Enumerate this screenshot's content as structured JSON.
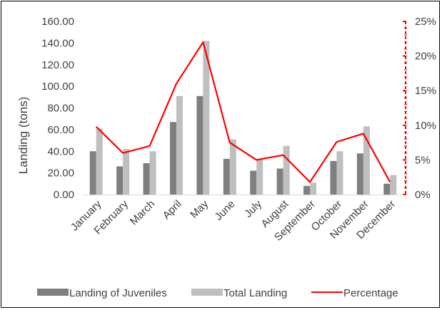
{
  "chart_data": {
    "type": "bar",
    "categories": [
      "January",
      "February",
      "March",
      "April",
      "May",
      "June",
      "July",
      "August",
      "September",
      "October",
      "November",
      "December"
    ],
    "series": [
      {
        "name": "Landing of Juveniles",
        "type": "bar",
        "axis": "left",
        "color": "#7f7f7f",
        "values": [
          40,
          26,
          29,
          67,
          91,
          33,
          22,
          24,
          8,
          31,
          38,
          10
        ]
      },
      {
        "name": "Total Landing",
        "type": "bar",
        "axis": "left",
        "color": "#bfbfbf",
        "values": [
          61,
          42,
          40,
          91,
          142,
          51,
          33,
          45,
          11,
          40,
          63,
          18
        ]
      },
      {
        "name": "Percentage",
        "type": "line",
        "axis": "right",
        "color": "#ff0000",
        "values": [
          0.098,
          0.06,
          0.07,
          0.16,
          0.22,
          0.075,
          0.05,
          0.057,
          0.018,
          0.076,
          0.088,
          0.018
        ]
      }
    ],
    "ylabel": "Landing (tons)",
    "ylim": [
      0,
      160
    ],
    "yticks": [
      "0.00",
      "20.00",
      "40.00",
      "60.00",
      "80.00",
      "100.00",
      "120.00",
      "140.00",
      "160.00"
    ],
    "y2lim": [
      0,
      0.25
    ],
    "y2ticks": [
      "0%",
      "5%",
      "10%",
      "15%",
      "20%",
      "25%"
    ],
    "legend_position": "bottom"
  }
}
